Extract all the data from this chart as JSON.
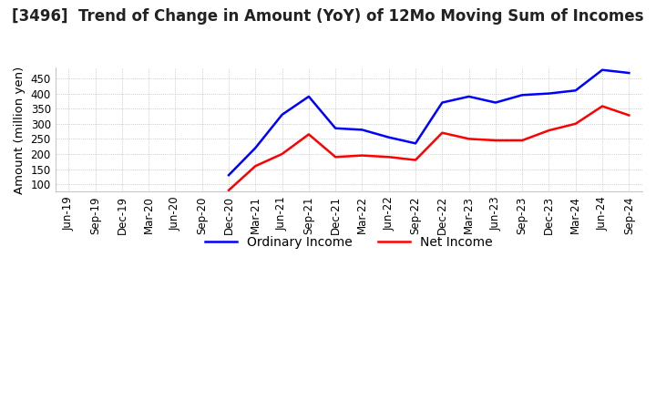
{
  "title": "[3496]  Trend of Change in Amount (YoY) of 12Mo Moving Sum of Incomes",
  "ylabel": "Amount (million yen)",
  "ylim": [
    75,
    485
  ],
  "yticks": [
    100,
    150,
    200,
    250,
    300,
    350,
    400,
    450
  ],
  "background_color": "#ffffff",
  "plot_bg_color": "#ffffff",
  "grid_color": "#aaaaaa",
  "dates": [
    "Jun-19",
    "Sep-19",
    "Dec-19",
    "Mar-20",
    "Jun-20",
    "Sep-20",
    "Dec-20",
    "Mar-21",
    "Jun-21",
    "Sep-21",
    "Dec-21",
    "Mar-22",
    "Jun-22",
    "Sep-22",
    "Dec-22",
    "Mar-23",
    "Jun-23",
    "Sep-23",
    "Dec-23",
    "Mar-24",
    "Jun-24",
    "Sep-24"
  ],
  "ordinary_income": [
    null,
    null,
    null,
    null,
    null,
    null,
    130,
    220,
    330,
    390,
    285,
    280,
    255,
    235,
    370,
    390,
    370,
    395,
    400,
    410,
    478,
    468
  ],
  "net_income": [
    null,
    null,
    null,
    null,
    null,
    null,
    80,
    160,
    200,
    265,
    190,
    195,
    190,
    180,
    270,
    250,
    245,
    245,
    278,
    300,
    358,
    328
  ],
  "ordinary_income_color": "#0000ff",
  "net_income_color": "#ff0000",
  "line_width": 1.8,
  "title_fontsize": 12,
  "tick_fontsize": 8.5,
  "label_fontsize": 9.5,
  "legend_fontsize": 10
}
